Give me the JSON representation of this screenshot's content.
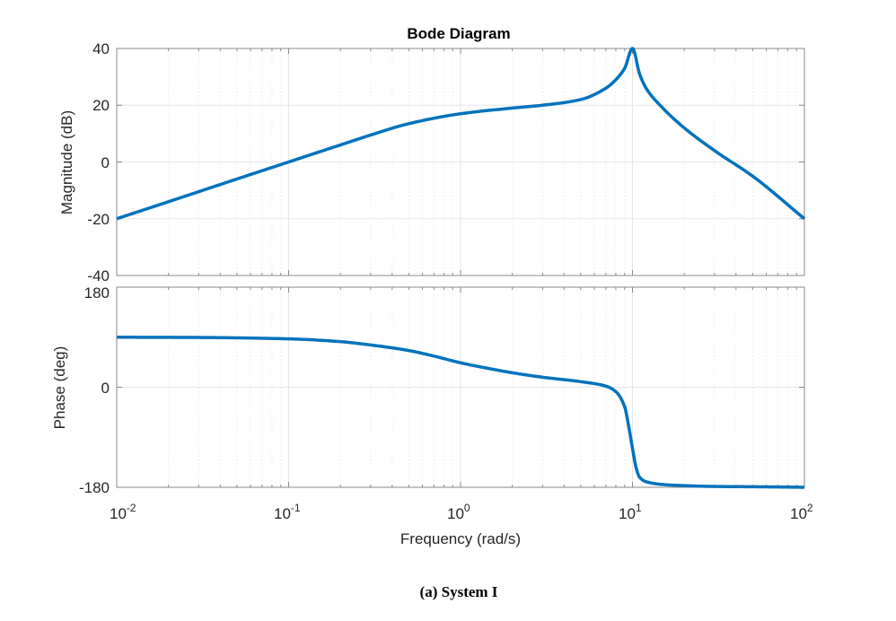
{
  "figure": {
    "title": "Bode Diagram",
    "caption": "(a)  System I",
    "line_color": "#0072BD",
    "axis_color": "#888888",
    "grid_color": "#e6e6e6"
  },
  "chart_data": [
    {
      "type": "line",
      "panel": "magnitude",
      "title": "Bode Diagram",
      "xlabel": "Frequency  (rad/s)",
      "ylabel": "Magnitude (dB)",
      "xscale": "log",
      "xlim": [
        0.01,
        100
      ],
      "ylim": [
        -40,
        40
      ],
      "yticks": [
        -40,
        -20,
        0,
        20,
        40
      ],
      "ytick_labels": [
        "-40",
        "-20",
        "0",
        "20",
        "40"
      ],
      "grid": true,
      "series": [
        {
          "name": "System I",
          "x": [
            0.01,
            0.02,
            0.05,
            0.1,
            0.2,
            0.3,
            0.5,
            1,
            2,
            3,
            5,
            7,
            8,
            9,
            10,
            11,
            12,
            15,
            20,
            30,
            50,
            100
          ],
          "values": [
            -20,
            -14,
            -6,
            0,
            6,
            9.5,
            13.5,
            17,
            19,
            20,
            22,
            26,
            29,
            33,
            40,
            31,
            26,
            19,
            12,
            4,
            -5,
            -20
          ]
        }
      ]
    },
    {
      "type": "line",
      "panel": "phase",
      "xlabel": "Frequency  (rad/s)",
      "ylabel": "Phase (deg)",
      "xscale": "log",
      "xlim": [
        0.01,
        100
      ],
      "xticks": [
        0.01,
        0.1,
        1,
        10,
        100
      ],
      "xtick_labels": [
        "10^-2",
        "10^-1",
        "10^0",
        "10^1",
        "10^2"
      ],
      "ylim": [
        -180,
        180
      ],
      "yticks": [
        -180,
        0,
        180
      ],
      "ytick_labels": [
        "-180",
        "0",
        "180"
      ],
      "grid": true,
      "series": [
        {
          "name": "System I",
          "x": [
            0.01,
            0.03,
            0.1,
            0.2,
            0.3,
            0.5,
            0.7,
            1,
            1.5,
            2,
            3,
            5,
            7,
            8,
            9,
            9.5,
            10,
            10.5,
            11,
            12,
            15,
            20,
            30,
            50,
            100
          ],
          "values": [
            90,
            89.5,
            87,
            82,
            76,
            66,
            56,
            44,
            33,
            26,
            18,
            10,
            2,
            -8,
            -35,
            -70,
            -110,
            -145,
            -162,
            -170,
            -175,
            -177,
            -178.5,
            -179,
            -180
          ]
        }
      ]
    }
  ],
  "axes": {
    "magnitude": {
      "ylabel": "Magnitude (dB)",
      "ytick_labels": [
        "40",
        "20",
        "0",
        "-20",
        "-40"
      ]
    },
    "phase": {
      "ylabel": "Phase (deg)",
      "ytick_labels": [
        "180",
        "0",
        "-180"
      ]
    },
    "x": {
      "label": "Frequency  (rad/s)",
      "tick_bases": [
        "10",
        "10",
        "10",
        "10",
        "10"
      ],
      "tick_exponents": [
        "-2",
        "-1",
        "0",
        "1",
        "2"
      ]
    }
  }
}
